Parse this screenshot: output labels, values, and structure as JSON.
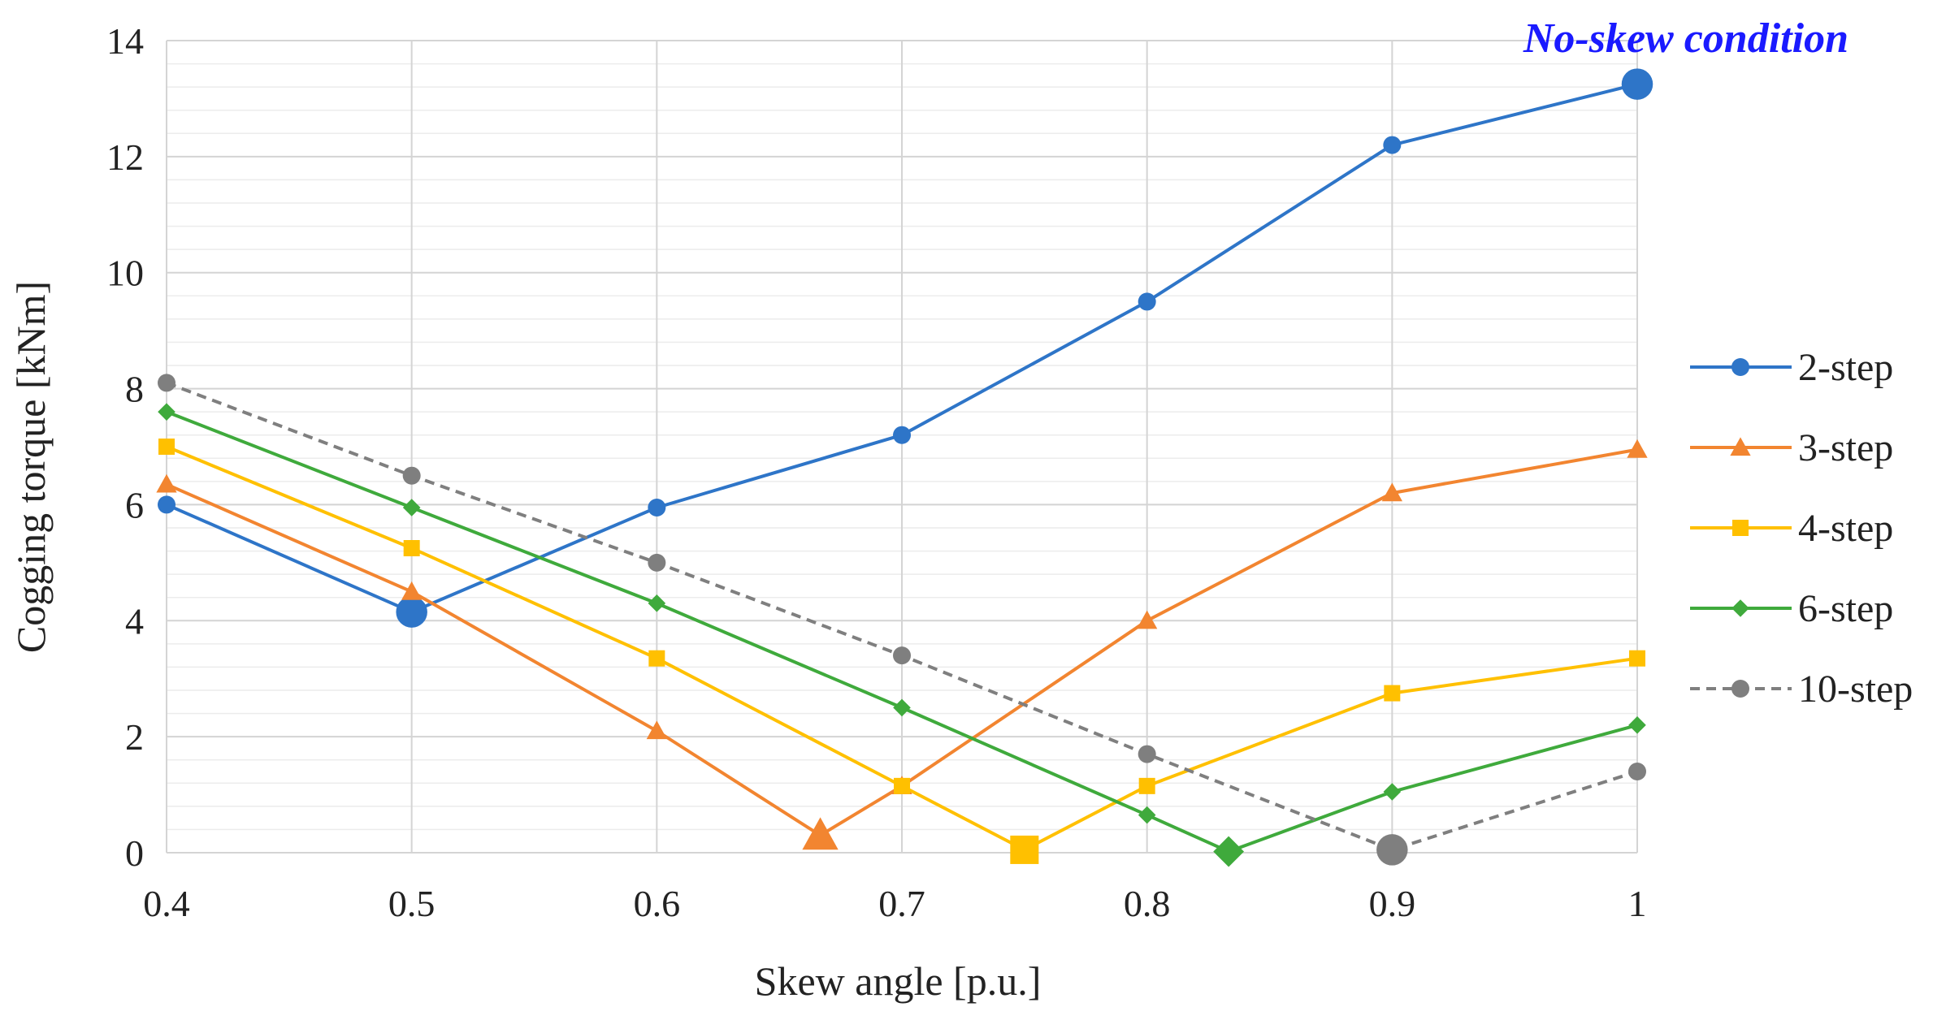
{
  "chart_data": {
    "type": "line",
    "title": "",
    "xlabel": "Skew angle [p.u.]",
    "ylabel": "Cogging torque [kNm]",
    "xlim": [
      0.4,
      1.0
    ],
    "ylim": [
      0,
      14
    ],
    "xticks": [
      "0.4",
      "0.5",
      "0.6",
      "0.7",
      "0.8",
      "0.9",
      "1"
    ],
    "yticks": [
      "0",
      "2",
      "4",
      "6",
      "8",
      "10",
      "12",
      "14"
    ],
    "grid": true,
    "legend_position": "right",
    "annotation": "No-skew condition",
    "series": [
      {
        "name": "2-step",
        "color": "#2e75c8",
        "marker": "circle",
        "dash": false,
        "points": [
          [
            0.4,
            6.0
          ],
          [
            0.5,
            4.15
          ],
          [
            0.6,
            5.95
          ],
          [
            0.7,
            7.2
          ],
          [
            0.8,
            9.5
          ],
          [
            0.9,
            12.2
          ],
          [
            1.0,
            13.25
          ]
        ],
        "highlight": [
          [
            0.5,
            4.15
          ],
          [
            1.0,
            13.25
          ]
        ]
      },
      {
        "name": "3-step",
        "color": "#f28530",
        "marker": "triangle",
        "dash": false,
        "points": [
          [
            0.4,
            6.35
          ],
          [
            0.5,
            4.5
          ],
          [
            0.6,
            2.1
          ],
          [
            0.6667,
            0.3
          ],
          [
            0.7,
            1.15
          ],
          [
            0.8,
            4.0
          ],
          [
            0.9,
            6.2
          ],
          [
            1.0,
            6.95
          ]
        ],
        "highlight": [
          [
            0.6667,
            0.3
          ]
        ]
      },
      {
        "name": "4-step",
        "color": "#ffc000",
        "marker": "square",
        "dash": false,
        "points": [
          [
            0.4,
            7.0
          ],
          [
            0.5,
            5.25
          ],
          [
            0.6,
            3.35
          ],
          [
            0.7,
            1.15
          ],
          [
            0.75,
            0.05
          ],
          [
            0.8,
            1.15
          ],
          [
            0.9,
            2.75
          ],
          [
            1.0,
            3.35
          ]
        ],
        "highlight": [
          [
            0.75,
            0.05
          ]
        ]
      },
      {
        "name": "6-step",
        "color": "#3faa3c",
        "marker": "diamond",
        "dash": false,
        "points": [
          [
            0.4,
            7.6
          ],
          [
            0.5,
            5.95
          ],
          [
            0.6,
            4.3
          ],
          [
            0.7,
            2.5
          ],
          [
            0.8,
            0.65
          ],
          [
            0.8333,
            0.02
          ],
          [
            0.9,
            1.05
          ],
          [
            1.0,
            2.2
          ]
        ],
        "highlight": [
          [
            0.8333,
            0.02
          ]
        ]
      },
      {
        "name": "10-step",
        "color": "#7f7f7f",
        "marker": "circle",
        "dash": true,
        "points": [
          [
            0.4,
            8.1
          ],
          [
            0.5,
            6.5
          ],
          [
            0.6,
            5.0
          ],
          [
            0.7,
            3.4
          ],
          [
            0.8,
            1.7
          ],
          [
            0.9,
            0.05
          ],
          [
            1.0,
            1.4
          ]
        ],
        "highlight": [
          [
            0.9,
            0.05
          ]
        ]
      }
    ]
  }
}
